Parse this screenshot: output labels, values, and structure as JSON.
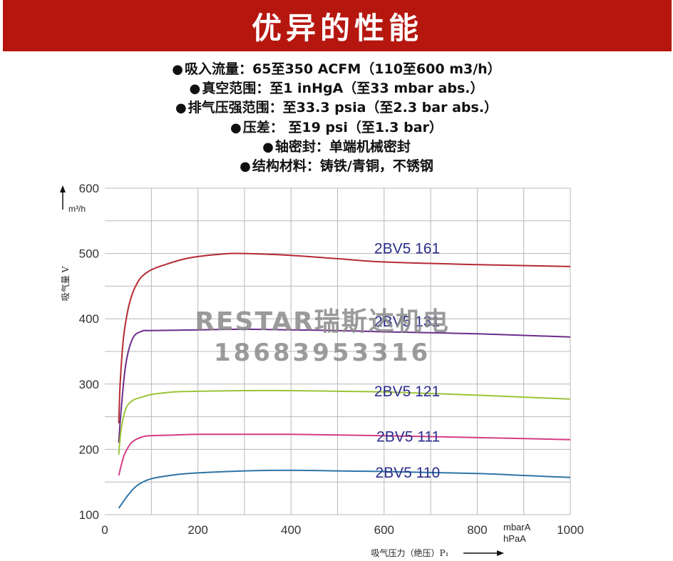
{
  "header": {
    "title": "优异的性能"
  },
  "specs": [
    {
      "bullet": "●",
      "text": "吸入流量：65至350 ACFM（110至600 m3/h）"
    },
    {
      "bullet": "●",
      "text": "真空范围：至1 inHgA（至33 mbar abs.）"
    },
    {
      "bullet": "●",
      "text": "排气压强范围：至33.3 psia（至2.3 bar abs.）"
    },
    {
      "bullet": "●",
      "text": "压差： 至19 psi（至1.3 bar）"
    },
    {
      "bullet": "●",
      "text": "轴密封：单端机械密封"
    },
    {
      "bullet": "●",
      "text": "结构材料：铸铁/青铜，不锈钢"
    }
  ],
  "watermark": {
    "line1": "RESTAR瑞斯达机电",
    "line2": "18683953316"
  },
  "chart_data": {
    "type": "line",
    "ylabel": "吸气量 V",
    "yunit": "m³/h",
    "xlabel": "吸气压力（绝压）P₁",
    "xunit_1": "mbarA",
    "xunit_2": "hPaA",
    "xlim": [
      0,
      1000
    ],
    "ylim": [
      100,
      600
    ],
    "x_ticks": [
      0,
      200,
      400,
      600,
      800,
      1000
    ],
    "y_ticks": [
      100,
      200,
      300,
      400,
      500,
      600
    ],
    "grid": true,
    "series": [
      {
        "name": "2BV5 161",
        "color": "#b52a32",
        "x": [
          30,
          33,
          40,
          50,
          60,
          70,
          80,
          100,
          130,
          180,
          250,
          300,
          400,
          500,
          600,
          800,
          1000
        ],
        "y": [
          240,
          300,
          370,
          415,
          440,
          455,
          465,
          475,
          483,
          493,
          499,
          500,
          497,
          492,
          487,
          483,
          480
        ]
      },
      {
        "name": "2BV5 131",
        "color": "#6a2d8a",
        "x": [
          30,
          35,
          45,
          60,
          80,
          100,
          200,
          300,
          400,
          500,
          600,
          800,
          1000
        ],
        "y": [
          210,
          260,
          330,
          370,
          381,
          382,
          383,
          384,
          383,
          382,
          380,
          377,
          372
        ]
      },
      {
        "name": "2BV5 121",
        "color": "#9cc43a",
        "x": [
          30,
          35,
          45,
          60,
          80,
          100,
          150,
          200,
          300,
          400,
          500,
          600,
          800,
          1000
        ],
        "y": [
          192,
          230,
          262,
          275,
          280,
          284,
          288,
          289,
          290,
          290,
          289,
          288,
          283,
          277
        ]
      },
      {
        "name": "2BV5 111",
        "color": "#d63d87",
        "x": [
          30,
          40,
          50,
          60,
          80,
          100,
          150,
          200,
          300,
          400,
          500,
          600,
          800,
          1000
        ],
        "y": [
          160,
          188,
          203,
          212,
          219,
          221,
          222,
          223,
          223,
          223,
          222,
          221,
          218,
          215
        ]
      },
      {
        "name": "2BV5 110",
        "color": "#2e74a6",
        "x": [
          30,
          50,
          70,
          100,
          150,
          200,
          300,
          400,
          500,
          600,
          800,
          900,
          1000
        ],
        "y": [
          110,
          130,
          145,
          155,
          161,
          164,
          167,
          168,
          167,
          166,
          163,
          160,
          157
        ]
      }
    ]
  }
}
